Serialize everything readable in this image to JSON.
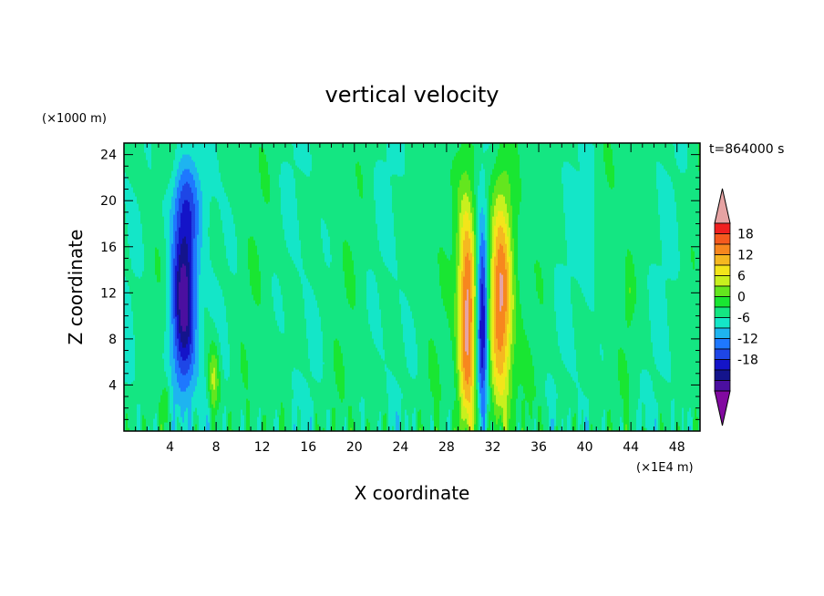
{
  "chart_data": {
    "type": "heatmap",
    "title": "vertical velocity",
    "xlabel": "X coordinate",
    "ylabel": "Z coordinate",
    "x_unit": "(×1E4 m)",
    "y_unit": "(×1000 m)",
    "time_label": "t=864000 s",
    "xlim": [
      0,
      50
    ],
    "ylim": [
      0,
      25
    ],
    "x_ticks": [
      4,
      8,
      12,
      16,
      20,
      24,
      28,
      32,
      36,
      40,
      44,
      48
    ],
    "y_ticks": [
      4,
      8,
      12,
      16,
      20,
      24
    ],
    "colorbar": {
      "levels": [
        -21,
        -18,
        -15,
        -12,
        -9,
        -6,
        -3,
        0,
        3,
        6,
        9,
        12,
        15,
        18,
        21
      ],
      "tick_labels": [
        18,
        12,
        6,
        0,
        -6,
        -12,
        -18
      ],
      "colors": [
        "#e6a3a3",
        "#f02020",
        "#f55a1e",
        "#f7871e",
        "#f5b820",
        "#f3e51a",
        "#c8f01e",
        "#64e61e",
        "#19e632",
        "#14e682",
        "#14e6c8",
        "#1eb4f0",
        "#1e78ff",
        "#1e46e6",
        "#1414c8",
        "#14148c",
        "#4b0fa0",
        "#820aa0"
      ]
    },
    "features": [
      {
        "kind": "downdraft",
        "x": 5.2,
        "z_top": 22,
        "z_bottom": 1,
        "min_value": -21
      },
      {
        "kind": "updraft",
        "x": 29.8,
        "z_top": 24,
        "z_bottom": 0,
        "max_value": 21
      },
      {
        "kind": "downdraft",
        "x": 31.2,
        "z_top": 18,
        "z_bottom": 1,
        "min_value": -18
      },
      {
        "kind": "updraft",
        "x": 32.8,
        "z_top": 24,
        "z_bottom": 1,
        "max_value": 18
      },
      {
        "kind": "updraft",
        "x": 7.8,
        "z_top": 9,
        "z_bottom": 1,
        "max_value": 9
      }
    ]
  }
}
